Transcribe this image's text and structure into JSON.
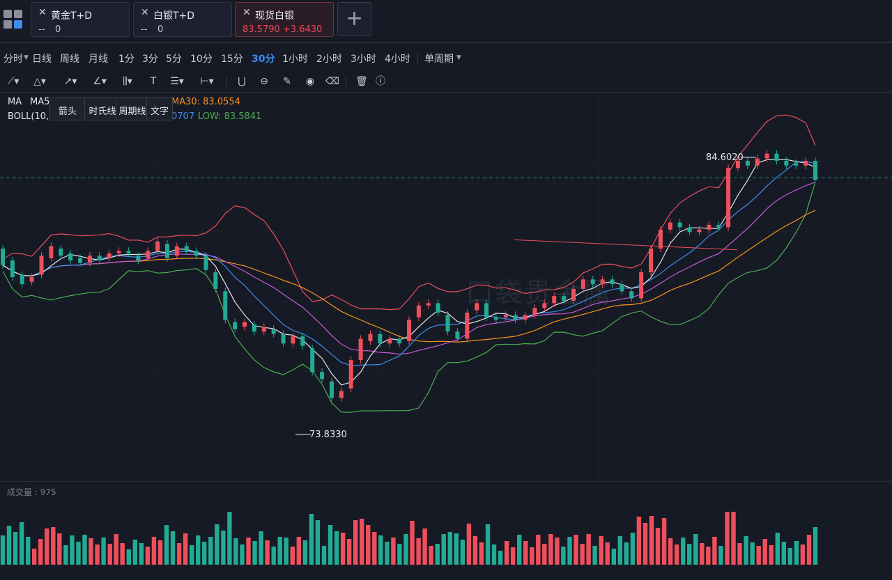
{
  "tabs": [
    {
      "name": "黄金T+D",
      "value": "--",
      "change": "0",
      "active": false
    },
    {
      "name": "白银T+D",
      "value": "--",
      "change": "0",
      "active": false
    },
    {
      "name": "现货白银",
      "value": "83.5790",
      "change": "+3.6430",
      "active": true
    }
  ],
  "add_tab_label": "+",
  "periods": [
    "分时",
    "日线",
    "周线",
    "月线",
    "1分",
    "3分",
    "5分",
    "10分",
    "15分",
    "30分",
    "1小时",
    "2小时",
    "3小时",
    "4小时",
    "单周期"
  ],
  "active_period": "30分",
  "tool_popups": [
    "箭头",
    "时氏线",
    "周期线",
    "文字"
  ],
  "indicators": {
    "ma_label": "MA",
    "ma5_label": "MA5",
    "ma30": "MA30: 83.0554",
    "boll_label": "BOLL(10,",
    "boll_mid_fragment": "0707",
    "boll_low": "LOW: 83.5841"
  },
  "annotations": {
    "high": "84.6020",
    "low": "73.8330"
  },
  "watermark": "口袋贵金属",
  "volume_label": "成交量 : 975",
  "colors": {
    "background": "#161a25",
    "up": "#ef4f5c",
    "down": "#22ab94",
    "accent": "#3d8cf0",
    "ma30": "#f7931a",
    "boll_low": "#4caf50"
  },
  "chart_data": {
    "type": "candlestick",
    "y_range": [
      72.5,
      86.0
    ],
    "last_price": 83.579,
    "candles": [
      [
        80.6,
        79.9
      ],
      [
        80.1,
        79.4
      ],
      [
        79.5,
        79.1
      ],
      [
        79.2,
        79.4
      ],
      [
        79.5,
        80.3
      ],
      [
        80.2,
        80.7
      ],
      [
        80.6,
        80.3
      ],
      [
        80.4,
        80.1
      ],
      [
        80.2,
        80.0
      ],
      [
        80.0,
        80.3
      ],
      [
        80.3,
        80.1
      ],
      [
        80.2,
        80.4
      ],
      [
        80.4,
        80.5
      ],
      [
        80.5,
        80.4
      ],
      [
        80.3,
        80.1
      ],
      [
        80.2,
        80.5
      ],
      [
        80.5,
        80.9
      ],
      [
        80.8,
        80.2
      ],
      [
        80.3,
        80.7
      ],
      [
        80.7,
        80.5
      ],
      [
        80.5,
        80.3
      ],
      [
        80.3,
        79.7
      ],
      [
        79.6,
        78.9
      ],
      [
        78.8,
        77.6
      ],
      [
        77.5,
        77.2
      ],
      [
        77.3,
        77.5
      ],
      [
        77.4,
        77.1
      ],
      [
        77.1,
        77.3
      ],
      [
        77.2,
        77.0
      ],
      [
        77.0,
        76.6
      ],
      [
        76.6,
        76.9
      ],
      [
        76.9,
        76.5
      ],
      [
        76.4,
        75.4
      ],
      [
        75.4,
        75.1
      ],
      [
        75.0,
        74.3
      ],
      [
        74.3,
        74.6
      ],
      [
        74.7,
        75.9
      ],
      [
        75.9,
        76.8
      ],
      [
        76.7,
        77.0
      ],
      [
        77.0,
        76.6
      ],
      [
        76.6,
        76.8
      ],
      [
        76.8,
        76.6
      ],
      [
        76.7,
        77.6
      ],
      [
        77.7,
        78.2
      ],
      [
        78.2,
        78.3
      ],
      [
        78.3,
        77.9
      ],
      [
        77.8,
        77.1
      ],
      [
        77.1,
        76.8
      ],
      [
        76.8,
        77.9
      ],
      [
        78.0,
        78.3
      ],
      [
        78.3,
        77.7
      ],
      [
        77.7,
        77.6
      ],
      [
        77.7,
        77.8
      ],
      [
        77.8,
        77.6
      ],
      [
        77.6,
        77.8
      ],
      [
        77.8,
        78.1
      ],
      [
        78.1,
        78.3
      ],
      [
        78.3,
        78.6
      ],
      [
        78.6,
        78.4
      ],
      [
        78.4,
        78.9
      ],
      [
        78.9,
        79.3
      ],
      [
        79.3,
        79.1
      ],
      [
        79.1,
        79.3
      ],
      [
        79.3,
        79.1
      ],
      [
        79.1,
        78.8
      ],
      [
        78.8,
        78.5
      ],
      [
        78.5,
        79.6
      ],
      [
        79.6,
        80.6
      ],
      [
        80.6,
        81.4
      ],
      [
        81.4,
        81.7
      ],
      [
        81.7,
        81.5
      ],
      [
        81.5,
        81.3
      ],
      [
        81.3,
        81.4
      ],
      [
        81.4,
        81.6
      ],
      [
        81.6,
        81.5
      ],
      [
        81.5,
        84.0
      ],
      [
        84.0,
        84.3
      ],
      [
        84.3,
        84.1
      ],
      [
        84.1,
        84.4
      ],
      [
        84.4,
        84.6
      ],
      [
        84.6,
        84.3
      ],
      [
        84.3,
        84.1
      ],
      [
        84.2,
        84.1
      ],
      [
        84.1,
        84.3
      ],
      [
        84.3,
        83.6
      ]
    ],
    "volume_unit": "relative"
  }
}
